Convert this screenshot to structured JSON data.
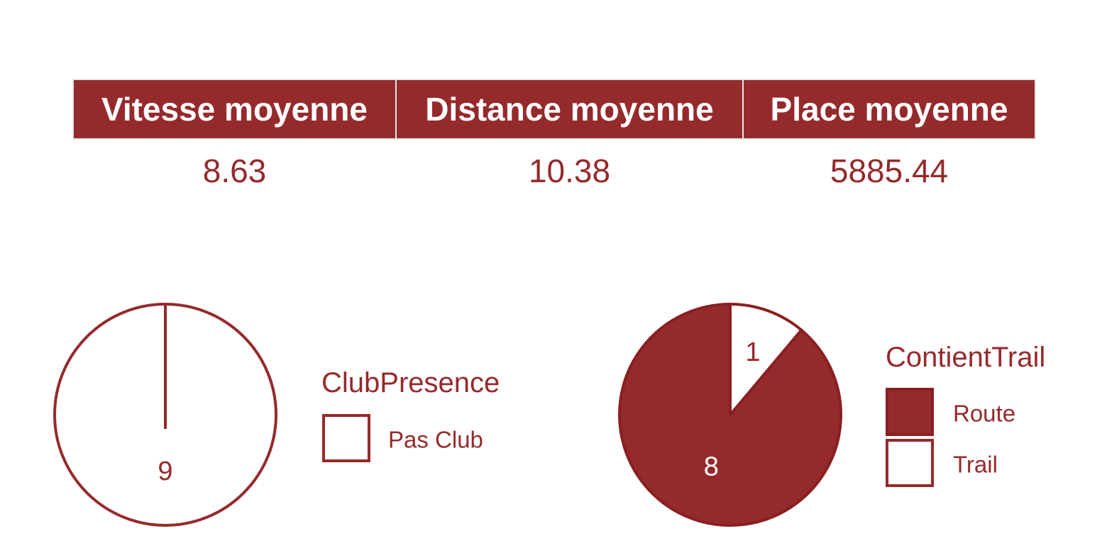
{
  "table": {
    "headers": [
      "Vitesse moyenne",
      "Distance moyenne",
      "Place moyenne"
    ],
    "values": [
      "8.63",
      "10.38",
      "5885.44"
    ]
  },
  "colors": {
    "accent": "#952a2d",
    "stroke_dark": "#8a1f22",
    "background": "#ffffff",
    "header_border": "#e6e6e6"
  },
  "chart_data": [
    {
      "type": "pie",
      "legend_title": "ClubPresence",
      "categories": [
        "Pas Club"
      ],
      "values": [
        9
      ],
      "slice_labels": [
        "9"
      ],
      "colors": [
        "#ffffff"
      ],
      "legend_placement": "right"
    },
    {
      "type": "pie",
      "legend_title": "ContientTrail",
      "categories": [
        "Route",
        "Trail"
      ],
      "values": [
        8,
        1
      ],
      "slice_labels": [
        "8",
        "1"
      ],
      "colors": [
        "#952a2d",
        "#ffffff"
      ],
      "legend_placement": "right"
    }
  ]
}
